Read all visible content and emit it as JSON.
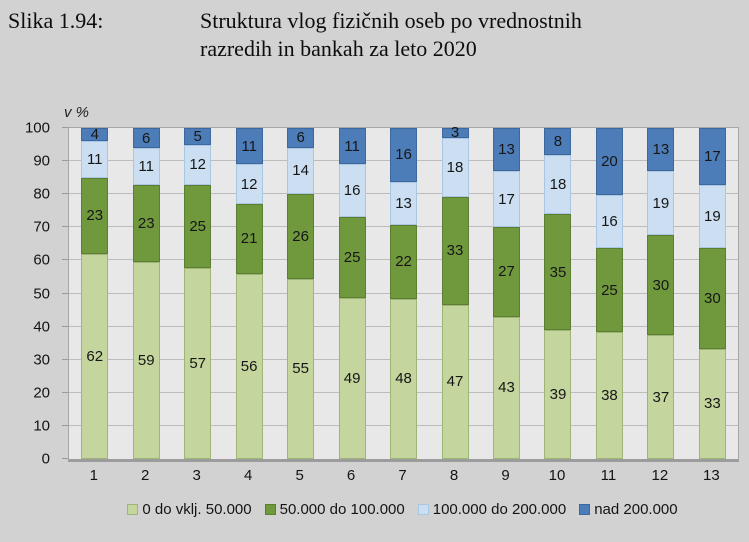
{
  "figure": {
    "label": "Slika 1.94:",
    "title_lines": [
      "Struktura vlog fizičnih oseb po vrednostnih",
      "razredih in bankah za leto 2020"
    ]
  },
  "chart_data": {
    "type": "bar",
    "stacked": true,
    "title": "Struktura vlog fizičnih oseb po vrednostnih razredih in bankah za leto 2020",
    "xlabel": "",
    "ylabel": "v %",
    "ylim": [
      0,
      100
    ],
    "yticks": [
      0,
      10,
      20,
      30,
      40,
      50,
      60,
      70,
      80,
      90,
      100
    ],
    "grid": true,
    "legend_position": "bottom",
    "categories": [
      "1",
      "2",
      "3",
      "4",
      "5",
      "6",
      "7",
      "8",
      "9",
      "10",
      "11",
      "12",
      "13"
    ],
    "series": [
      {
        "name": "0 do vklj. 50.000",
        "color": "#c4d69d",
        "border": "#9fb578",
        "values": [
          62,
          59,
          57,
          56,
          55,
          49,
          48,
          47,
          43,
          39,
          38,
          37,
          33
        ]
      },
      {
        "name": "50.000 do 100.000",
        "color": "#70993e",
        "border": "#5c7e31",
        "values": [
          23,
          23,
          25,
          21,
          26,
          25,
          22,
          33,
          27,
          35,
          25,
          30,
          30
        ]
      },
      {
        "name": "100.000 do 200.000",
        "color": "#cbdef2",
        "border": "#a9c6e2",
        "values": [
          11,
          11,
          12,
          12,
          14,
          16,
          13,
          18,
          17,
          18,
          16,
          19,
          19
        ]
      },
      {
        "name": "nad 200.000",
        "color": "#4d7db8",
        "border": "#3c689d",
        "values": [
          4,
          6,
          5,
          11,
          6,
          11,
          16,
          3,
          13,
          8,
          20,
          13,
          17
        ]
      }
    ],
    "colors": {
      "page_background": "#d2d2d2",
      "plot_background": "#e8e8e8",
      "gridline": "#bcbcbc",
      "frame": "#a6a6a6"
    }
  }
}
